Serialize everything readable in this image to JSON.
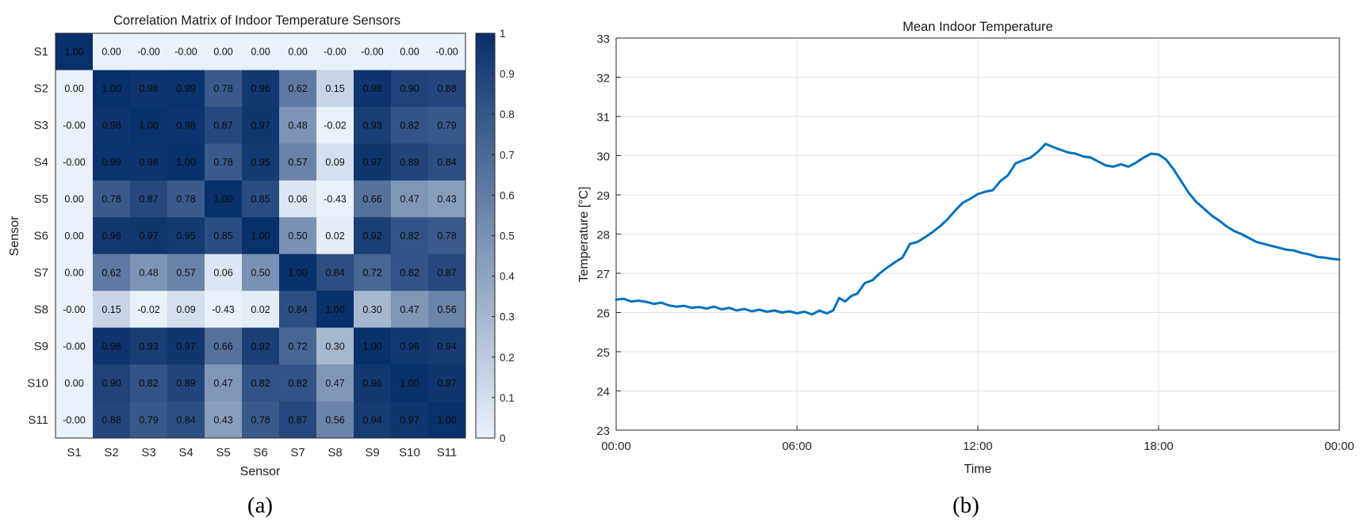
{
  "chart_data": [
    {
      "type": "heatmap",
      "panel_label": "(a)",
      "title": "Correlation Matrix of Indoor Temperature Sensors",
      "xlabel": "Sensor",
      "ylabel": "Sensor",
      "x_categories": [
        "S1",
        "S2",
        "S3",
        "S4",
        "S5",
        "S6",
        "S7",
        "S8",
        "S9",
        "S10",
        "S11"
      ],
      "y_categories": [
        "S1",
        "S2",
        "S3",
        "S4",
        "S5",
        "S6",
        "S7",
        "S8",
        "S9",
        "S10",
        "S11"
      ],
      "values": [
        [
          "1.00",
          "0.00",
          "-0.00",
          "-0.00",
          "0.00",
          "0.00",
          "0.00",
          "-0.00",
          "-0.00",
          "0.00",
          "-0.00"
        ],
        [
          "0.00",
          "1.00",
          "0.98",
          "0.99",
          "0.78",
          "0.96",
          "0.62",
          "0.15",
          "0.98",
          "0.90",
          "0.88"
        ],
        [
          "-0.00",
          "0.98",
          "1.00",
          "0.98",
          "0.87",
          "0.97",
          "0.48",
          "-0.02",
          "0.93",
          "0.82",
          "0.79"
        ],
        [
          "-0.00",
          "0.99",
          "0.98",
          "1.00",
          "0.78",
          "0.95",
          "0.57",
          "0.09",
          "0.97",
          "0.89",
          "0.84"
        ],
        [
          "0.00",
          "0.78",
          "0.87",
          "0.78",
          "1.00",
          "0.85",
          "0.06",
          "-0.43",
          "0.66",
          "0.47",
          "0.43"
        ],
        [
          "0.00",
          "0.96",
          "0.97",
          "0.95",
          "0.85",
          "1.00",
          "0.50",
          "0.02",
          "0.92",
          "0.82",
          "0.78"
        ],
        [
          "0.00",
          "0.62",
          "0.48",
          "0.57",
          "0.06",
          "0.50",
          "1.00",
          "0.84",
          "0.72",
          "0.82",
          "0.87"
        ],
        [
          "-0.00",
          "0.15",
          "-0.02",
          "0.09",
          "-0.43",
          "0.02",
          "0.84",
          "1.00",
          "0.30",
          "0.47",
          "0.56"
        ],
        [
          "-0.00",
          "0.98",
          "0.93",
          "0.97",
          "0.66",
          "0.92",
          "0.72",
          "0.30",
          "1.00",
          "0.96",
          "0.94"
        ],
        [
          "0.00",
          "0.90",
          "0.82",
          "0.89",
          "0.47",
          "0.82",
          "0.82",
          "0.47",
          "0.96",
          "1.00",
          "0.97"
        ],
        [
          "-0.00",
          "0.88",
          "0.79",
          "0.84",
          "0.43",
          "0.78",
          "0.87",
          "0.56",
          "0.94",
          "0.97",
          "1.00"
        ]
      ],
      "colorbar": {
        "range": [
          0,
          1
        ],
        "ticks": [
          "0",
          "0.1",
          "0.2",
          "0.3",
          "0.4",
          "0.5",
          "0.6",
          "0.7",
          "0.8",
          "0.9",
          "1"
        ],
        "color_low": "#E9F1FB",
        "color_high": "#08306B"
      }
    },
    {
      "type": "line",
      "panel_label": "(b)",
      "title": "Mean Indoor Temperature",
      "xlabel": "Time",
      "ylabel": "Temperature [°C]",
      "x_ticks": [
        "00:00",
        "06:00",
        "12:00",
        "18:00",
        "00:00"
      ],
      "xlim_hours": [
        0,
        24
      ],
      "ylim": [
        23,
        33
      ],
      "y_ticks": [
        "23",
        "24",
        "25",
        "26",
        "27",
        "28",
        "29",
        "30",
        "31",
        "32",
        "33"
      ],
      "grid": true,
      "line_color": "#0072BD",
      "series": [
        {
          "x_hours": [
            0,
            0.25,
            0.5,
            0.75,
            1,
            1.25,
            1.5,
            1.75,
            2,
            2.25,
            2.5,
            2.75,
            3,
            3.25,
            3.5,
            3.75,
            4,
            4.25,
            4.5,
            4.75,
            5,
            5.25,
            5.5,
            5.75,
            6,
            6.25,
            6.5,
            6.75,
            6.9,
            7.0,
            7.2,
            7.4,
            7.6,
            7.8,
            8,
            8.25,
            8.5,
            8.75,
            9,
            9.25,
            9.5,
            9.75,
            10,
            10.25,
            10.5,
            10.75,
            11,
            11.25,
            11.5,
            11.75,
            12,
            12.25,
            12.5,
            12.75,
            13,
            13.25,
            13.5,
            13.75,
            14,
            14.25,
            14.5,
            14.75,
            15,
            15.25,
            15.5,
            15.75,
            16,
            16.25,
            16.5,
            16.75,
            17,
            17.25,
            17.5,
            17.75,
            18,
            18.25,
            18.5,
            18.75,
            19,
            19.25,
            19.5,
            19.75,
            20,
            20.25,
            20.5,
            20.75,
            21,
            21.25,
            21.5,
            21.75,
            22,
            22.25,
            22.5,
            22.75,
            23,
            23.25,
            23.5,
            23.75,
            24
          ],
          "y": [
            26.33,
            26.35,
            26.28,
            26.3,
            26.27,
            26.22,
            26.25,
            26.18,
            26.15,
            26.17,
            26.12,
            26.14,
            26.1,
            26.15,
            26.08,
            26.12,
            26.05,
            26.09,
            26.03,
            26.07,
            26.02,
            26.05,
            26.0,
            26.03,
            25.98,
            26.02,
            25.95,
            26.05,
            26.0,
            25.98,
            26.05,
            26.37,
            26.28,
            26.42,
            26.48,
            26.75,
            26.82,
            27.0,
            27.15,
            27.28,
            27.4,
            27.75,
            27.8,
            27.92,
            28.05,
            28.2,
            28.38,
            28.6,
            28.8,
            28.9,
            29.02,
            29.08,
            29.12,
            29.35,
            29.5,
            29.8,
            29.88,
            29.95,
            30.1,
            30.3,
            30.22,
            30.15,
            30.08,
            30.05,
            29.98,
            29.95,
            29.85,
            29.75,
            29.72,
            29.78,
            29.72,
            29.82,
            29.95,
            30.05,
            30.03,
            29.9,
            29.65,
            29.35,
            29.05,
            28.82,
            28.65,
            28.48,
            28.35,
            28.2,
            28.08,
            28.0,
            27.9,
            27.8,
            27.75,
            27.7,
            27.65,
            27.6,
            27.58,
            27.52,
            27.48,
            27.42,
            27.4,
            27.37,
            27.35
          ]
        }
      ]
    }
  ]
}
